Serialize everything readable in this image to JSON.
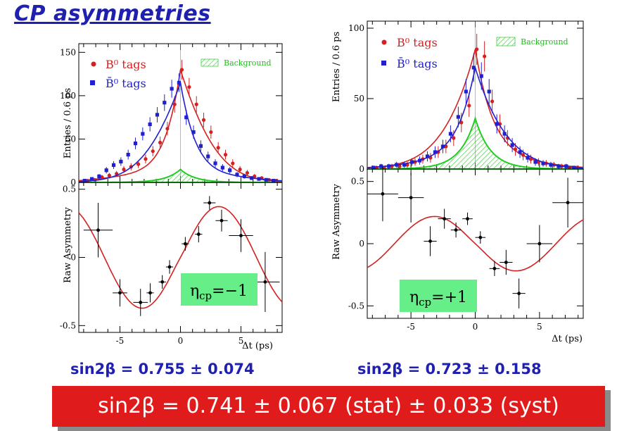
{
  "page": {
    "title": "CP asymmetries",
    "result_left": "sin2β = 0.755 ± 0.074",
    "result_right": "sin2β = 0.723 ± 0.158",
    "combined": "sin2β = 0.741 ± 0.067 (stat) ± 0.033 (syst)"
  },
  "colors": {
    "b0": "#d42020",
    "b0bar": "#2020d0",
    "background": "#22cc22",
    "eta_box": "#66ee88",
    "title": "#1f1fb0"
  },
  "legend": {
    "b0": "B⁰ tags",
    "b0bar": "B̄⁰ tags",
    "background": "Background"
  },
  "chart_data": [
    {
      "type": "scatter",
      "panel": "left-top",
      "ylabel": "Entries / 0.6 ps",
      "xlim": [
        -8.4,
        8.4
      ],
      "ylim": [
        0,
        160
      ],
      "yticks": [
        0,
        50,
        100,
        150
      ],
      "series": [
        {
          "name": "B⁰ tags",
          "x": [
            -7.8,
            -7.2,
            -6.6,
            -6.0,
            -5.4,
            -4.8,
            -4.2,
            -3.6,
            -3.0,
            -2.4,
            -1.8,
            -1.2,
            -0.6,
            0.0,
            0.6,
            1.2,
            1.8,
            2.4,
            3.0,
            3.6,
            4.2,
            4.8,
            5.4,
            6.0,
            6.6,
            7.2,
            7.8
          ],
          "y": [
            2,
            3,
            6,
            8,
            10,
            15,
            18,
            21,
            27,
            36,
            46,
            62,
            90,
            130,
            110,
            90,
            72,
            58,
            40,
            32,
            22,
            15,
            11,
            7,
            5,
            3,
            2
          ]
        },
        {
          "name": "B̄⁰ tags",
          "x": [
            -7.8,
            -7.2,
            -6.6,
            -6.0,
            -5.4,
            -4.8,
            -4.2,
            -3.6,
            -3.0,
            -2.4,
            -1.8,
            -1.2,
            -0.6,
            0.0,
            0.6,
            1.2,
            1.8,
            2.4,
            3.0,
            3.6,
            4.2,
            4.8,
            5.4,
            6.0,
            6.6,
            7.2,
            7.8
          ],
          "y": [
            2,
            4,
            7,
            14,
            20,
            24,
            32,
            45,
            56,
            67,
            78,
            92,
            108,
            115,
            75,
            58,
            42,
            30,
            22,
            17,
            14,
            9,
            7,
            5,
            4,
            3,
            2
          ]
        }
      ],
      "background_peak": 15
    },
    {
      "type": "scatter",
      "panel": "left-bottom",
      "xlabel": "Δt (ps)",
      "ylabel": "Raw Asymmetry",
      "xlim": [
        -8.4,
        8.4
      ],
      "ylim": [
        -0.55,
        0.55
      ],
      "xticks": [
        -5,
        0,
        5
      ],
      "yticks": [
        -0.5,
        0,
        0.5
      ],
      "points": [
        {
          "x": -6.8,
          "y": 0.2,
          "xerr": 1.2,
          "yerr": 0.2
        },
        {
          "x": -5.0,
          "y": -0.26,
          "xerr": 0.6,
          "yerr": 0.1
        },
        {
          "x": -3.3,
          "y": -0.33,
          "xerr": 0.6,
          "yerr": 0.1
        },
        {
          "x": -2.5,
          "y": -0.26,
          "xerr": 0.3,
          "yerr": 0.07
        },
        {
          "x": -1.5,
          "y": -0.18,
          "xerr": 0.3,
          "yerr": 0.05
        },
        {
          "x": -0.9,
          "y": -0.07,
          "xerr": 0.3,
          "yerr": 0.05
        },
        {
          "x": 0.4,
          "y": 0.1,
          "xerr": 0.3,
          "yerr": 0.05
        },
        {
          "x": 1.5,
          "y": 0.17,
          "xerr": 0.3,
          "yerr": 0.06
        },
        {
          "x": 2.4,
          "y": 0.4,
          "xerr": 0.5,
          "yerr": 0.05
        },
        {
          "x": 3.4,
          "y": 0.27,
          "xerr": 0.5,
          "yerr": 0.08
        },
        {
          "x": 5.0,
          "y": 0.16,
          "xerr": 1.0,
          "yerr": 0.12
        },
        {
          "x": 7.0,
          "y": -0.18,
          "xerr": 1.2,
          "yerr": 0.22
        }
      ],
      "fit_amplitude": 0.375,
      "annotation": "η_cp=−1"
    },
    {
      "type": "scatter",
      "panel": "right-top",
      "ylabel": "Entries / 0.6 ps",
      "xlim": [
        -8.4,
        8.4
      ],
      "ylim": [
        0,
        105
      ],
      "yticks": [
        0,
        50,
        100
      ],
      "series": [
        {
          "name": "B⁰ tags",
          "x": [
            -7.8,
            -7.2,
            -6.6,
            -6.0,
            -5.4,
            -4.8,
            -4.2,
            -3.6,
            -3.0,
            -2.4,
            -1.8,
            -1.2,
            -0.6,
            0.0,
            0.6,
            1.2,
            1.8,
            2.4,
            3.0,
            3.6,
            4.2,
            4.8,
            5.4,
            6.0,
            6.6,
            7.2,
            7.8
          ],
          "y": [
            1,
            1,
            2,
            2,
            3,
            5,
            7,
            8,
            12,
            16,
            22,
            33,
            45,
            85,
            80,
            48,
            32,
            22,
            14,
            10,
            7,
            5,
            4,
            3,
            2,
            1,
            1
          ]
        },
        {
          "name": "B̄⁰ tags",
          "x": [
            -7.8,
            -7.2,
            -6.6,
            -6.0,
            -5.4,
            -4.8,
            -4.2,
            -3.6,
            -3.0,
            -2.4,
            -1.8,
            -1.2,
            -0.6,
            0.0,
            0.6,
            1.2,
            1.8,
            2.4,
            3.0,
            3.6,
            4.2,
            4.8,
            5.4,
            6.0,
            6.6,
            7.2,
            7.8
          ],
          "y": [
            1,
            2,
            2,
            3,
            3,
            5,
            6,
            9,
            12,
            16,
            25,
            37,
            55,
            72,
            66,
            55,
            32,
            25,
            17,
            12,
            8,
            5,
            4,
            3,
            2,
            2,
            1
          ]
        }
      ],
      "background_peak": 36
    },
    {
      "type": "scatter",
      "panel": "right-bottom",
      "xlabel": "Δt (ps)",
      "ylabel": "Raw Asymmetry",
      "xlim": [
        -8.4,
        8.4
      ],
      "ylim": [
        -0.6,
        0.6
      ],
      "xticks": [
        -5,
        0,
        5
      ],
      "yticks": [
        -0.5,
        0,
        0.5
      ],
      "points": [
        {
          "x": -7.2,
          "y": 0.4,
          "xerr": 1.2,
          "yerr": 0.22
        },
        {
          "x": -5.0,
          "y": 0.37,
          "xerr": 1.0,
          "yerr": 0.2
        },
        {
          "x": -3.5,
          "y": 0.02,
          "xerr": 0.5,
          "yerr": 0.12
        },
        {
          "x": -2.4,
          "y": 0.2,
          "xerr": 0.5,
          "yerr": 0.08
        },
        {
          "x": -1.5,
          "y": 0.11,
          "xerr": 0.4,
          "yerr": 0.06
        },
        {
          "x": -0.6,
          "y": 0.2,
          "xerr": 0.4,
          "yerr": 0.05
        },
        {
          "x": 0.4,
          "y": 0.05,
          "xerr": 0.4,
          "yerr": 0.05
        },
        {
          "x": 1.5,
          "y": -0.2,
          "xerr": 0.4,
          "yerr": 0.06
        },
        {
          "x": 2.4,
          "y": -0.15,
          "xerr": 0.5,
          "yerr": 0.1
        },
        {
          "x": 3.4,
          "y": -0.4,
          "xerr": 0.5,
          "yerr": 0.12
        },
        {
          "x": 5.0,
          "y": 0.0,
          "xerr": 1.0,
          "yerr": 0.15
        },
        {
          "x": 7.2,
          "y": 0.33,
          "xerr": 1.2,
          "yerr": 0.2
        }
      ],
      "fit_amplitude": -0.22,
      "annotation": "η_cp=+1"
    }
  ]
}
